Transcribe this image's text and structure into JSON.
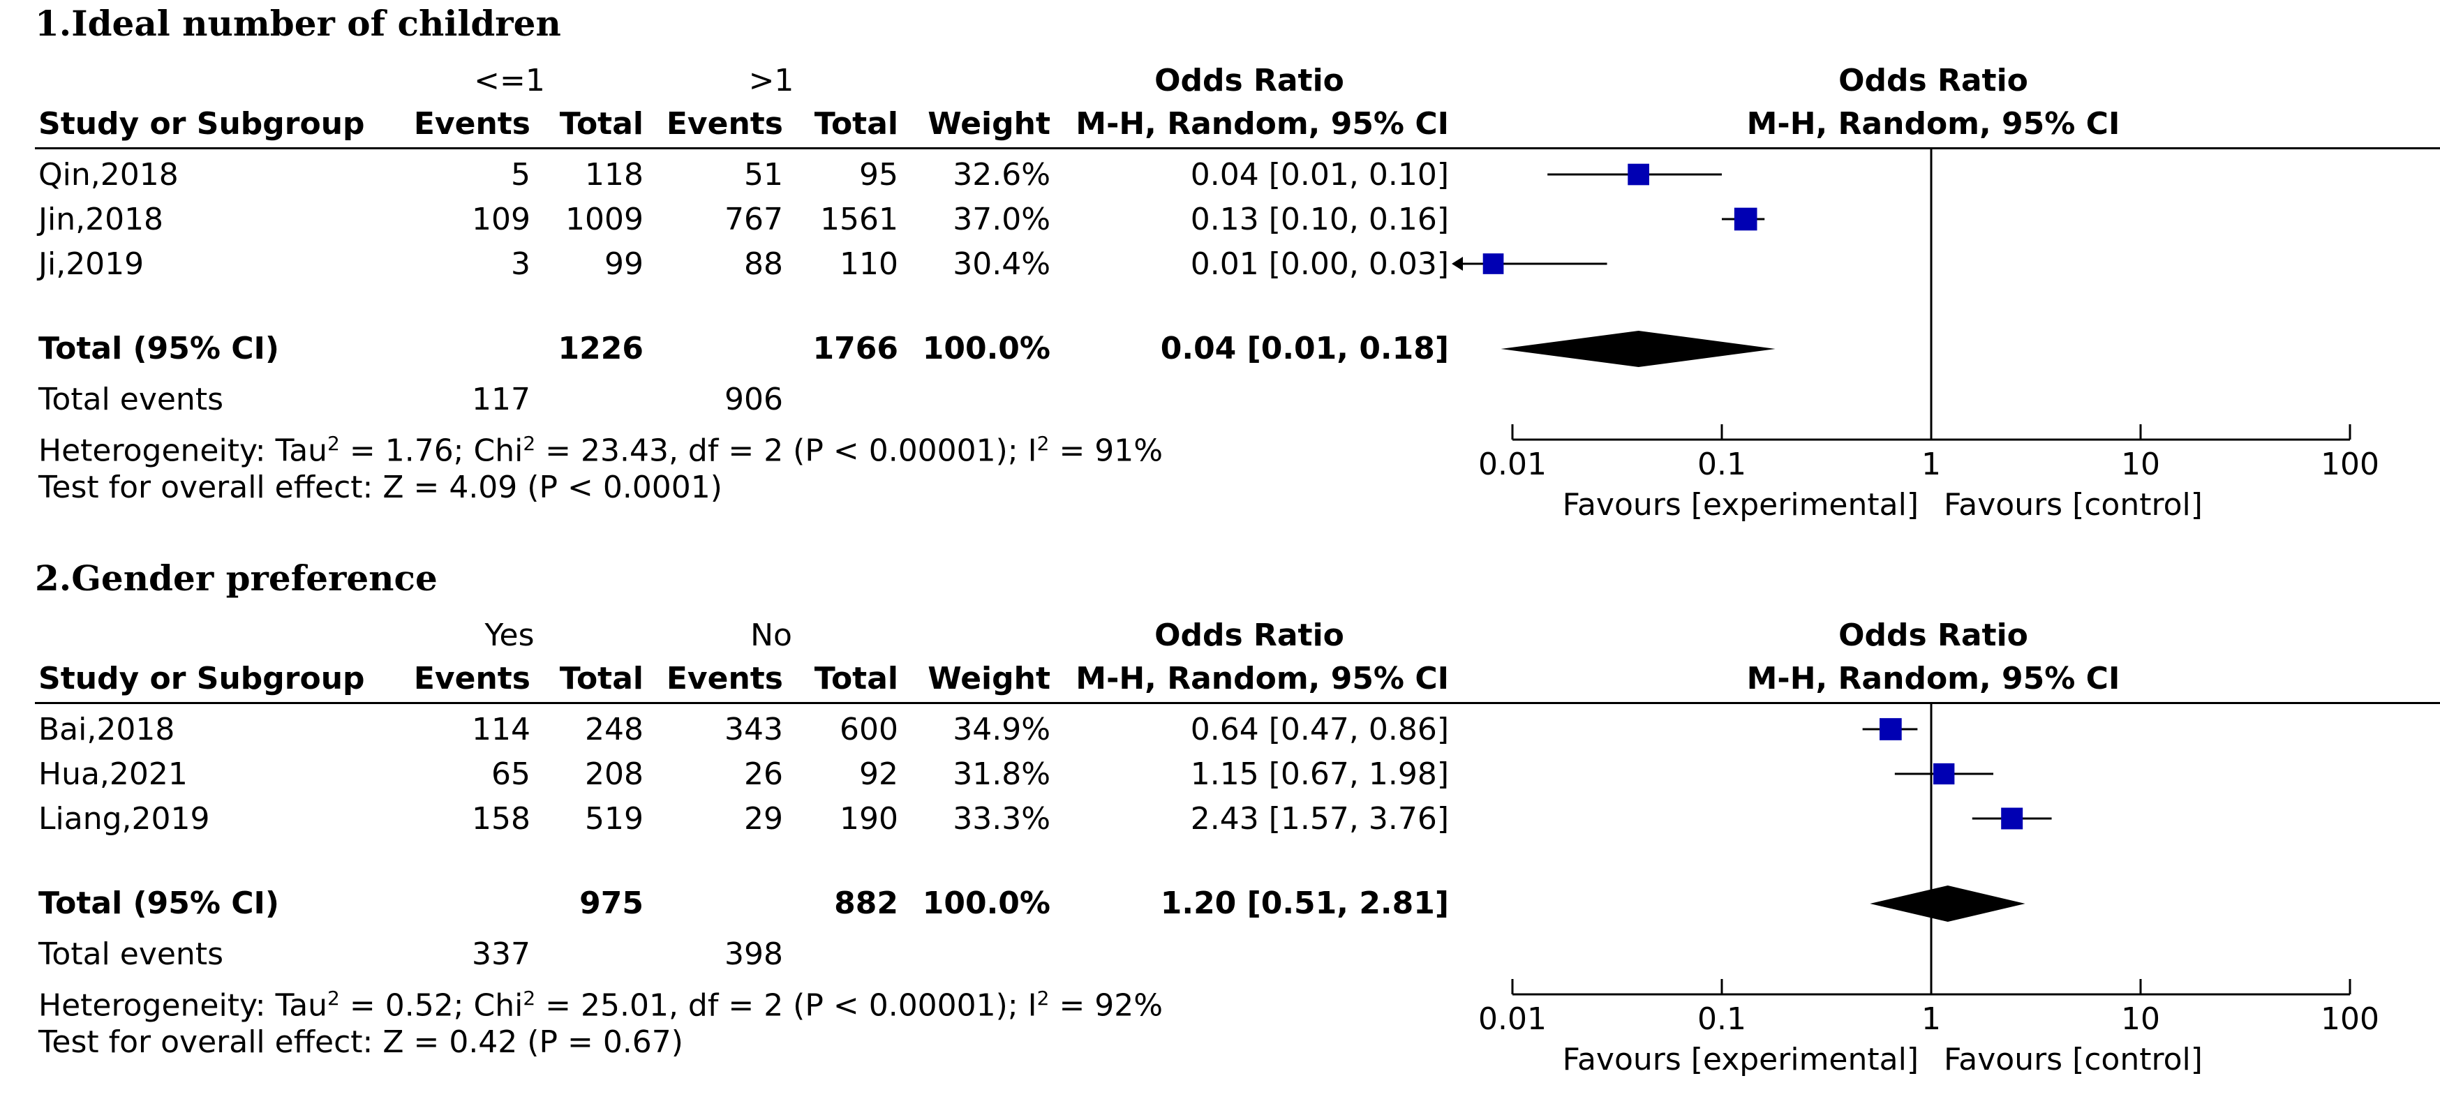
{
  "axis": {
    "ticks": [
      0.01,
      0.1,
      1,
      10,
      100
    ],
    "tick_labels": [
      "0.01",
      "0.1",
      "1",
      "10",
      "100"
    ],
    "favours_left": "Favours [experimental]",
    "favours_right": "Favours [control]"
  },
  "colors": {
    "marker": "#0000b3",
    "line": "#000000"
  },
  "chart_data": [
    {
      "type": "forest",
      "title": "1.Ideal number of children",
      "group1": "<=1",
      "group2": ">1",
      "headers": {
        "study": "Study or Subgroup",
        "events": "Events",
        "total": "Total",
        "weight": "Weight",
        "or_top": "Odds Ratio",
        "or_bottom": "M-H, Random, 95% CI"
      },
      "xscale": "log",
      "xlim": [
        0.01,
        100
      ],
      "studies": [
        {
          "name": "Qin,2018",
          "e1": "5",
          "n1": "118",
          "e2": "51",
          "n2": "95",
          "weight": "32.6%",
          "ci_text": "0.04 [0.01, 0.10]",
          "or": 0.04,
          "lo": 0.0147,
          "hi": 0.1,
          "w": 32.6
        },
        {
          "name": "Jin,2018",
          "e1": "109",
          "n1": "1009",
          "e2": "767",
          "n2": "1561",
          "weight": "37.0%",
          "ci_text": "0.13 [0.10, 0.16]",
          "or": 0.13,
          "lo": 0.1,
          "hi": 0.16,
          "w": 37.0
        },
        {
          "name": "Ji,2019",
          "e1": "3",
          "n1": "99",
          "e2": "88",
          "n2": "110",
          "weight": "30.4%",
          "ci_text": "0.01 [0.00, 0.03]",
          "or": 0.0081,
          "lo": 0.002,
          "hi": 0.0283,
          "w": 30.4,
          "arrow_left": true
        }
      ],
      "total": {
        "label": "Total (95% CI)",
        "n1": "1226",
        "n2": "1766",
        "weight": "100.0%",
        "ci_text": "0.04 [0.01, 0.18]",
        "or": 0.04,
        "lo": 0.0088,
        "hi": 0.18
      },
      "total_events": {
        "label": "Total events",
        "e1": "117",
        "e2": "906"
      },
      "heterogeneity": {
        "prefix": "Heterogeneity: Tau",
        "sup1": "2",
        "mid1": " = 1.76; Chi",
        "sup2": "2",
        "mid2": " = 23.43, df = 2 (P < 0.00001); I",
        "sup3": "2",
        "tail": " = 91%"
      },
      "overall": "Test for overall effect: Z = 4.09 (P < 0.0001)"
    },
    {
      "type": "forest",
      "title": "2.Gender preference",
      "group1": "Yes",
      "group2": "No",
      "headers": {
        "study": "Study or Subgroup",
        "events": "Events",
        "total": "Total",
        "weight": "Weight",
        "or_top": "Odds Ratio",
        "or_bottom": "M-H, Random, 95% CI"
      },
      "xscale": "log",
      "xlim": [
        0.01,
        100
      ],
      "studies": [
        {
          "name": "Bai,2018",
          "e1": "114",
          "n1": "248",
          "e2": "343",
          "n2": "600",
          "weight": "34.9%",
          "ci_text": "0.64 [0.47, 0.86]",
          "or": 0.64,
          "lo": 0.47,
          "hi": 0.86,
          "w": 34.9
        },
        {
          "name": "Hua,2021",
          "e1": "65",
          "n1": "208",
          "e2": "26",
          "n2": "92",
          "weight": "31.8%",
          "ci_text": "1.15 [0.67, 1.98]",
          "or": 1.15,
          "lo": 0.67,
          "hi": 1.98,
          "w": 31.8
        },
        {
          "name": "Liang,2019",
          "e1": "158",
          "n1": "519",
          "e2": "29",
          "n2": "190",
          "weight": "33.3%",
          "ci_text": "2.43 [1.57, 3.76]",
          "or": 2.43,
          "lo": 1.57,
          "hi": 3.76,
          "w": 33.3
        }
      ],
      "total": {
        "label": "Total (95% CI)",
        "n1": "975",
        "n2": "882",
        "weight": "100.0%",
        "ci_text": "1.20 [0.51, 2.81]",
        "or": 1.2,
        "lo": 0.51,
        "hi": 2.81
      },
      "total_events": {
        "label": "Total events",
        "e1": "337",
        "e2": "398"
      },
      "heterogeneity": {
        "prefix": "Heterogeneity: Tau",
        "sup1": "2",
        "mid1": " = 0.52; Chi",
        "sup2": "2",
        "mid2": " = 25.01, df = 2 (P < 0.00001); I",
        "sup3": "2",
        "tail": " = 92%"
      },
      "overall": "Test for overall effect: Z = 0.42 (P = 0.67)"
    }
  ]
}
